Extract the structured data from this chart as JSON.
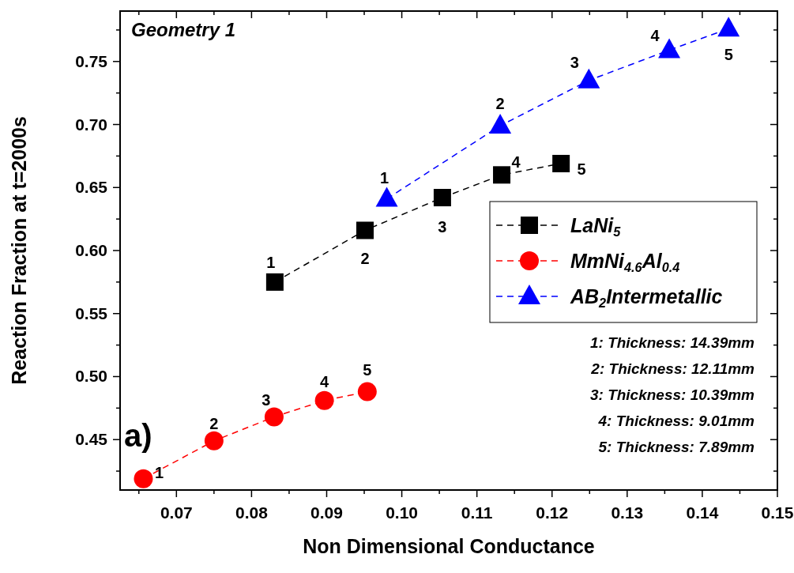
{
  "chart_data": {
    "type": "line",
    "title": "Geometry 1",
    "xlabel": "Non Dimensional Conductance",
    "ylabel": "Reaction Fraction at t=2000s",
    "xlim": [
      0.0625,
      0.15
    ],
    "ylim": [
      0.41,
      0.79
    ],
    "xticks": [
      {
        "value": 0.065,
        "label": null
      },
      {
        "value": 0.07,
        "label": "0.07"
      },
      {
        "value": 0.075,
        "label": null
      },
      {
        "value": 0.08,
        "label": "0.08"
      },
      {
        "value": 0.085,
        "label": null
      },
      {
        "value": 0.09,
        "label": "0.09"
      },
      {
        "value": 0.095,
        "label": null
      },
      {
        "value": 0.1,
        "label": "0.10"
      },
      {
        "value": 0.105,
        "label": null
      },
      {
        "value": 0.11,
        "label": "0.11"
      },
      {
        "value": 0.115,
        "label": null
      },
      {
        "value": 0.12,
        "label": "0.12"
      },
      {
        "value": 0.125,
        "label": null
      },
      {
        "value": 0.13,
        "label": "0.13"
      },
      {
        "value": 0.135,
        "label": null
      },
      {
        "value": 0.14,
        "label": "0.14"
      },
      {
        "value": 0.145,
        "label": null
      },
      {
        "value": 0.15,
        "label": "0.15"
      }
    ],
    "yticks": [
      {
        "value": 0.425,
        "label": null
      },
      {
        "value": 0.45,
        "label": "0.45"
      },
      {
        "value": 0.475,
        "label": null
      },
      {
        "value": 0.5,
        "label": "0.50"
      },
      {
        "value": 0.525,
        "label": null
      },
      {
        "value": 0.55,
        "label": "0.55"
      },
      {
        "value": 0.575,
        "label": null
      },
      {
        "value": 0.6,
        "label": "0.60"
      },
      {
        "value": 0.625,
        "label": null
      },
      {
        "value": 0.65,
        "label": "0.65"
      },
      {
        "value": 0.675,
        "label": null
      },
      {
        "value": 0.7,
        "label": "0.70"
      },
      {
        "value": 0.725,
        "label": null
      },
      {
        "value": 0.75,
        "label": "0.75"
      },
      {
        "value": 0.775,
        "label": null
      }
    ],
    "grid": false,
    "legend": "right",
    "line_style": "dashed",
    "series": [
      {
        "name": "LaNi$_{5}$",
        "color": "#000000",
        "marker": "square",
        "x": [
          0.0831,
          0.0951,
          0.1054,
          0.1133,
          0.1212
        ],
        "values": [
          0.575,
          0.616,
          0.642,
          0.66,
          0.669
        ]
      },
      {
        "name": "MmNi$_{4.6}$Al$_{0.4}$",
        "color": "#ff0000",
        "marker": "circle",
        "x": [
          0.0656,
          0.075,
          0.083,
          0.0897,
          0.0954
        ],
        "values": [
          0.419,
          0.449,
          0.468,
          0.481,
          0.488
        ]
      },
      {
        "name": "AB$_{2}$Intermetallic",
        "color": "#0000ff",
        "marker": "triangle",
        "x": [
          0.098,
          0.1131,
          0.1249,
          0.1356,
          0.1435
        ],
        "values": [
          0.641,
          0.699,
          0.735,
          0.759,
          0.776
        ]
      }
    ],
    "annotations": [
      {
        "text": "1",
        "x": 0.0831,
        "y": 0.575
      },
      {
        "text": "2",
        "x": 0.0951,
        "y": 0.616
      },
      {
        "text": "3",
        "x": 0.1054,
        "y": 0.642
      },
      {
        "text": "4",
        "x": 0.1133,
        "y": 0.66
      },
      {
        "text": "5",
        "x": 0.1212,
        "y": 0.669
      },
      {
        "text": "1",
        "x": 0.0656,
        "y": 0.419
      },
      {
        "text": "2",
        "x": 0.075,
        "y": 0.449
      },
      {
        "text": "3",
        "x": 0.083,
        "y": 0.468
      },
      {
        "text": "4",
        "x": 0.0897,
        "y": 0.481
      },
      {
        "text": "5",
        "x": 0.0954,
        "y": 0.488
      },
      {
        "text": "1",
        "x": 0.098,
        "y": 0.641
      },
      {
        "text": "2",
        "x": 0.1131,
        "y": 0.699
      },
      {
        "text": "3",
        "x": 0.1249,
        "y": 0.735
      },
      {
        "text": "4",
        "x": 0.1356,
        "y": 0.759
      },
      {
        "text": "5",
        "x": 0.1435,
        "y": 0.776
      },
      "a)",
      "1: Thickness: 14.39mm",
      "2: Thickness: 12.11mm",
      "3: Thickness: 10.39mm",
      "4: Thickness: 9.01mm",
      "5: Thickness: 7.89mm"
    ]
  }
}
